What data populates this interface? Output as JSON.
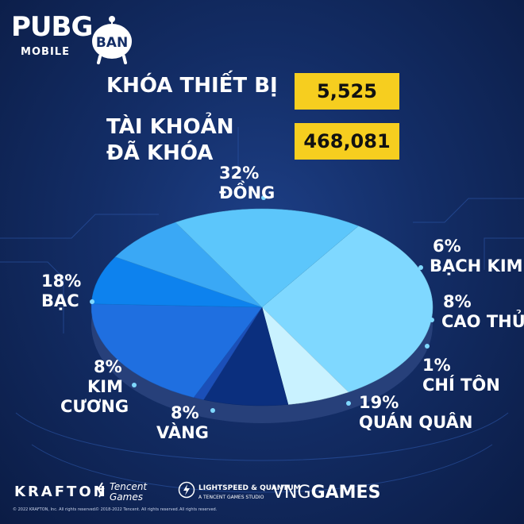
{
  "branding": {
    "pubg_word": "PUBG",
    "pubg_sub": "MOBILE",
    "ban_badge": "BAN"
  },
  "stats": [
    {
      "label_lines": [
        "KHÓA THIẾT BỊ"
      ],
      "value": "5,525"
    },
    {
      "label_lines": [
        "TÀI KHOẢN",
        "ĐÃ KHÓA"
      ],
      "value": "468,081"
    }
  ],
  "chart_data": {
    "type": "pie",
    "style": "3d-ellipse",
    "slices": [
      {
        "label": "ĐỒNG",
        "percent_label": "32%",
        "value": 32,
        "color": "#7fd8ff"
      },
      {
        "label": "BẠCH KIM",
        "percent_label": "6%",
        "value": 6,
        "color": "#c9f2ff"
      },
      {
        "label": "CAO THỦ",
        "percent_label": "8%",
        "value": 8,
        "color": "#0b2f7e"
      },
      {
        "label": "CHÍ TÔN",
        "percent_label": "1%",
        "value": 1,
        "color": "#1b4fb8"
      },
      {
        "label": "QUÁN QUÂN",
        "percent_label": "19%",
        "value": 19,
        "color": "#1f6fe0"
      },
      {
        "label": "VÀNG",
        "percent_label": "8%",
        "value": 8,
        "color": "#0d82ee"
      },
      {
        "label": "KIM CƯƠNG",
        "percent_label": "8%",
        "value": 8,
        "color": "#3aa8f5"
      },
      {
        "label": "BẠC",
        "percent_label": "18%",
        "value": 18,
        "color": "#5cc6fb"
      }
    ]
  },
  "footer": {
    "krafton": "KRAFTON",
    "tencent_line1": "Tencent",
    "tencent_line2": "Games",
    "lq_line1": "LIGHTSPEED & QUANTUM",
    "lq_line2": "A TENCENT GAMES STUDIO",
    "vng_light": "VNG",
    "vng_bold": "GAMES",
    "legal_left": "© 2022 KRAFTON, Inc. All rights reserved.",
    "legal_mid": "© 2018-2022 Tencent. All rights reserved.",
    "legal_right": "All rights reserved."
  }
}
